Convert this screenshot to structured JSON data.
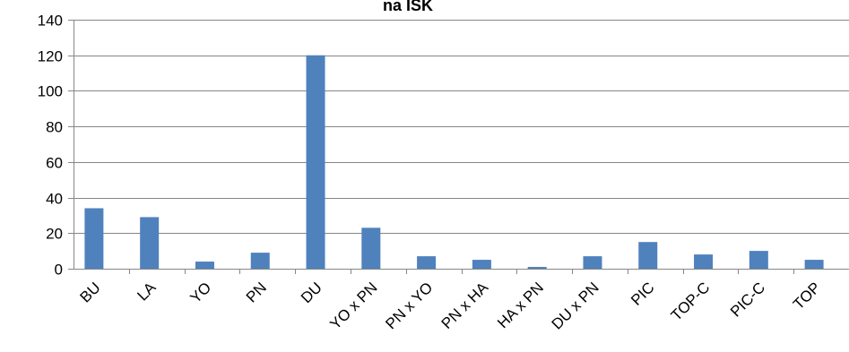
{
  "chart_data": {
    "type": "bar",
    "title": "na ISK",
    "xlabel": "",
    "ylabel": "",
    "ylim": [
      0,
      140
    ],
    "yticks": [
      0,
      20,
      40,
      60,
      80,
      100,
      120,
      140
    ],
    "grid": true,
    "legend": "none",
    "categories": [
      "BU",
      "LA",
      "YO",
      "PN",
      "DU",
      "YO x PN",
      "PN x YO",
      "PN x HA",
      "HA x PN",
      "DU x PN",
      "PIC",
      "TOP-C",
      "PIC-C",
      "TOP"
    ],
    "values": [
      34,
      29,
      4,
      9,
      120,
      23,
      7,
      5,
      1,
      7,
      15,
      8,
      10,
      5
    ],
    "colors": {
      "bar": "#4f81bd",
      "grid": "#868686",
      "axis": "#868686",
      "text": "#000000"
    }
  }
}
